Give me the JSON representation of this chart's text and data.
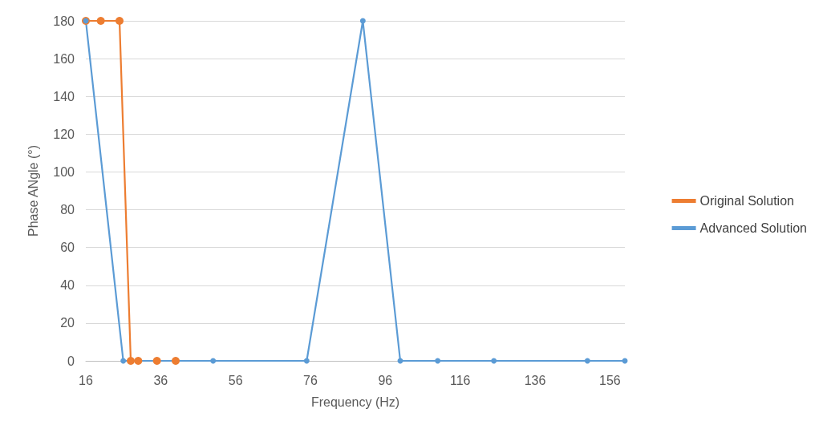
{
  "chart_data": {
    "type": "line",
    "xlabel": "Frequency (Hz)",
    "ylabel": "Phase ANgle (°)",
    "xlim": [
      16,
      160
    ],
    "xticks": [
      16,
      36,
      56,
      76,
      96,
      116,
      136,
      156
    ],
    "ylim": [
      0,
      180
    ],
    "yticks": [
      0,
      20,
      40,
      60,
      80,
      100,
      120,
      140,
      160,
      180
    ],
    "grid": "y",
    "legend": "right",
    "marker": "circle",
    "line_style": "solid",
    "series": [
      {
        "name": "Original Solution",
        "color": "#ed7d31",
        "x": [
          16,
          20,
          25,
          28,
          30,
          35,
          40
        ],
        "values": [
          180,
          180,
          180,
          0,
          0,
          0,
          0
        ]
      },
      {
        "name": "Advanced Solution",
        "color": "#5b9bd5",
        "x": [
          16,
          26,
          50,
          75,
          90,
          100,
          110,
          125,
          150,
          160
        ],
        "values": [
          180,
          0,
          0,
          0,
          180,
          0,
          0,
          0,
          0,
          0
        ]
      }
    ]
  }
}
